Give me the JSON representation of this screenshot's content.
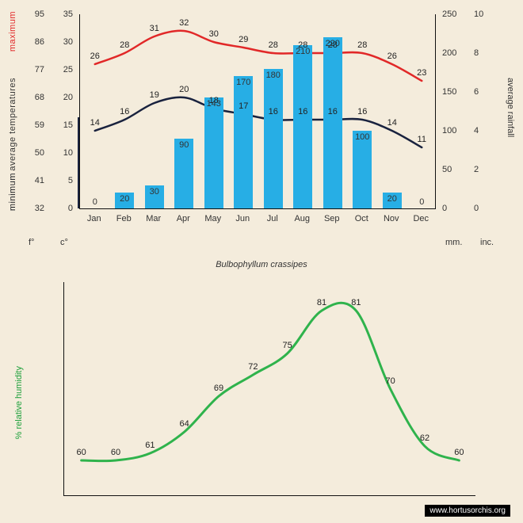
{
  "source_watermark": "www.hortusorchis.org",
  "species_title": "Bulbophyllum crassipes",
  "months": [
    "Jan",
    "Feb",
    "Mar",
    "Apr",
    "May",
    "Jun",
    "Jul",
    "Aug",
    "Sep",
    "Oct",
    "Nov",
    "Dec"
  ],
  "units": {
    "f": "f°",
    "c": "c°",
    "mm": "mm.",
    "inc": "inc."
  },
  "axis_labels": {
    "minimum": "minimum",
    "average_temperatures": "average  temperatures",
    "maximum": "maximum",
    "average_rainfall": "average rainfall",
    "relative_humidity": "%  relative humidity"
  },
  "temp_chart": {
    "type": "combo_bar_line",
    "background_color": "#f4ecdc",
    "bar_color": "#27aee5",
    "max_line_color": "#e12828",
    "min_line_color": "#19223e",
    "line_width": 2.5,
    "f_ticks": [
      32,
      41,
      50,
      59,
      68,
      77,
      86,
      95
    ],
    "c_ticks": [
      0,
      5,
      10,
      15,
      20,
      25,
      30,
      35
    ],
    "mm_ticks": [
      0,
      50,
      100,
      150,
      200,
      250
    ],
    "inc_ticks": [
      0,
      2,
      4,
      6,
      8,
      10
    ],
    "c_lim": [
      0,
      35
    ],
    "mm_lim": [
      0,
      250
    ],
    "max_temp_c": [
      26,
      28,
      31,
      32,
      30,
      29,
      28,
      28,
      28,
      28,
      26,
      23
    ],
    "min_temp_c": [
      14,
      16,
      19,
      20,
      18,
      17,
      16,
      16,
      16,
      16,
      14,
      11
    ],
    "rainfall_mm": [
      0,
      20,
      30,
      90,
      143,
      170,
      180,
      210,
      220,
      100,
      20,
      0
    ]
  },
  "humidity_chart": {
    "type": "line",
    "line_color": "#2fb34c",
    "line_width": 3,
    "ylim": [
      55,
      85
    ],
    "values": [
      60,
      60,
      61,
      64,
      69,
      72,
      75,
      81,
      81,
      70,
      62,
      60
    ]
  }
}
